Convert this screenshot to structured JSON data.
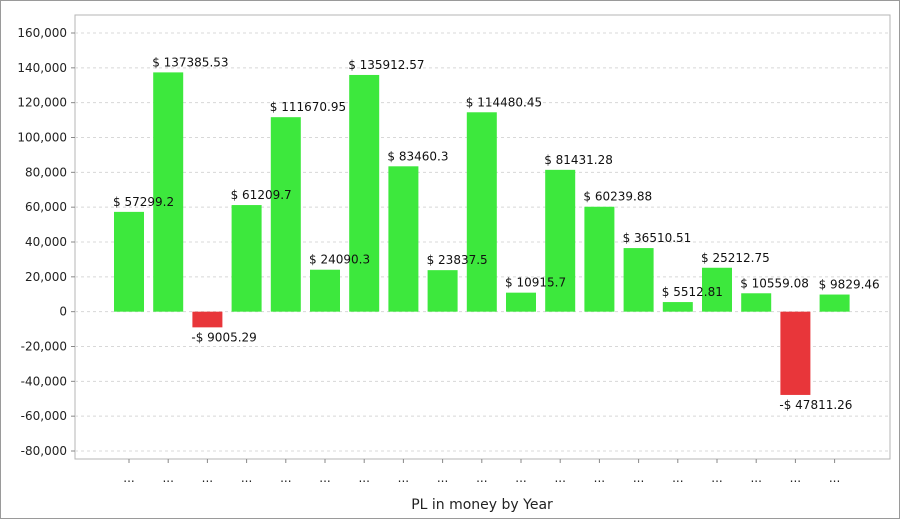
{
  "chart_data": {
    "type": "bar",
    "title": "",
    "xlabel": "PL in money by Year",
    "ylabel": "",
    "ylim": [
      -80000,
      160000
    ],
    "yticks": [
      -80000,
      -60000,
      -40000,
      -20000,
      0,
      20000,
      40000,
      60000,
      80000,
      100000,
      120000,
      140000,
      160000
    ],
    "ytick_labels": [
      "-80,000",
      "-60,000",
      "-40,000",
      "-20,000",
      "0",
      "20,000",
      "40,000",
      "60,000",
      "80,000",
      "100,000",
      "120,000",
      "140,000",
      "160,000"
    ],
    "grid": true,
    "legend": "none",
    "categories": [
      "...",
      "...",
      "...",
      "...",
      "...",
      "...",
      "...",
      "...",
      "...",
      "...",
      "...",
      "...",
      "...",
      "...",
      "...",
      "...",
      "...",
      "...",
      "..."
    ],
    "values": [
      57299.2,
      137385.53,
      -9005.29,
      61209.7,
      111670.95,
      24090.3,
      135912.57,
      83460.3,
      23837.5,
      114480.45,
      10915.7,
      81431.28,
      60239.88,
      36510.51,
      5512.81,
      25212.75,
      10559.08,
      -47811.26,
      9829.46
    ],
    "data_labels": [
      "$ 57299.2",
      "$ 137385.53",
      "-$ 9005.29",
      "$ 61209.7",
      "$ 111670.95",
      "$ 24090.3",
      "$ 135912.57",
      "$ 83460.3",
      "$ 23837.5",
      "$ 114480.45",
      "$ 10915.7",
      "$ 81431.28",
      "$ 60239.88",
      "$ 36510.51",
      "$ 5512.81",
      "$ 25212.75",
      "$ 10559.08",
      "-$ 47811.26",
      "$ 9829.46"
    ],
    "colors": {
      "positive": "#3de83d",
      "negative": "#e8363a",
      "grid": "#d8d8d8",
      "axis": "#888888"
    }
  }
}
